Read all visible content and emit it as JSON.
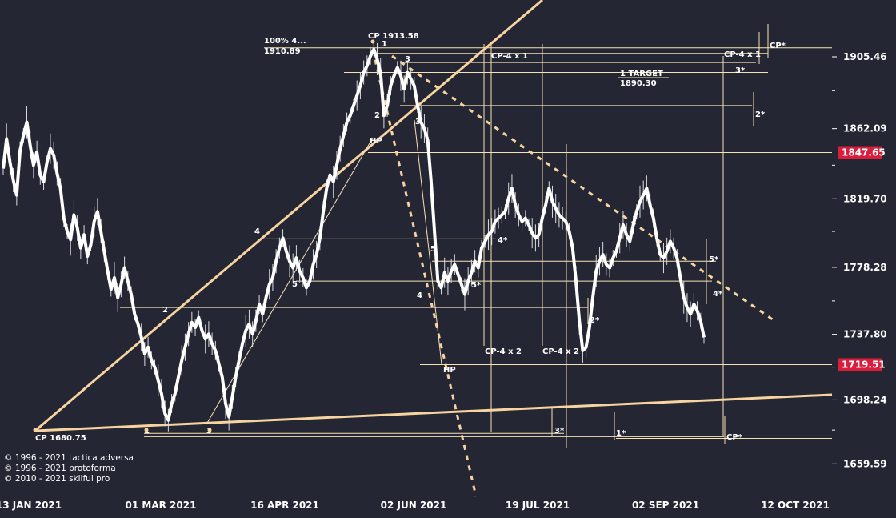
{
  "chart_data": {
    "type": "line",
    "title": "",
    "xlabel": "",
    "ylabel": "",
    "ylim": [
      1642,
      1922
    ],
    "x_ticks": [
      "13 JAN 2021",
      "01 MAR 2021",
      "16 APR 2021",
      "02 JUN 2021",
      "19 JUL 2021",
      "02 SEP 2021",
      "12 OCT 2021"
    ],
    "y_ticks": [
      1905.46,
      1862.09,
      1819.7,
      1778.28,
      1737.8,
      1698.24,
      1659.59
    ],
    "highlighted_prices": [
      {
        "value": 1847.65,
        "label": "1847.65",
        "color": "#d81e3c"
      },
      {
        "value": 1719.51,
        "label": "1719.51",
        "color": "#d81e3c"
      }
    ],
    "series": [
      {
        "price_path": [
          1838,
          1856,
          1842,
          1831,
          1822,
          1849,
          1858,
          1866,
          1852,
          1840,
          1848,
          1834,
          1830,
          1842,
          1850,
          1846,
          1835,
          1826,
          1808,
          1800,
          1795,
          1810,
          1802,
          1790,
          1798,
          1785,
          1792,
          1806,
          1812,
          1800,
          1788,
          1776,
          1765,
          1772,
          1760,
          1768,
          1778,
          1770,
          1762,
          1750,
          1744,
          1736,
          1726,
          1730,
          1722,
          1718,
          1710,
          1702,
          1690,
          1686,
          1696,
          1702,
          1712,
          1722,
          1730,
          1738,
          1745,
          1742,
          1748,
          1740,
          1735,
          1738,
          1732,
          1728,
          1720,
          1712,
          1696,
          1688,
          1700,
          1712,
          1722,
          1732,
          1740,
          1744,
          1738,
          1746,
          1756,
          1750,
          1760,
          1768,
          1772,
          1782,
          1790,
          1796,
          1788,
          1782,
          1778,
          1784,
          1776,
          1772,
          1766,
          1770,
          1780,
          1786,
          1796,
          1812,
          1826,
          1834,
          1830,
          1840,
          1850,
          1858,
          1866,
          1870,
          1876,
          1882,
          1888,
          1896,
          1900,
          1906,
          1910,
          1904,
          1896,
          1870,
          1876,
          1888,
          1894,
          1899,
          1894,
          1886,
          1896,
          1892,
          1888,
          1876,
          1866,
          1862,
          1855,
          1830,
          1800,
          1770,
          1766,
          1775,
          1770,
          1776,
          1780,
          1774,
          1768,
          1762,
          1770,
          1775,
          1782,
          1778,
          1790,
          1794,
          1798,
          1800,
          1806,
          1808,
          1810,
          1812,
          1820,
          1826,
          1816,
          1810,
          1806,
          1808,
          1804,
          1799,
          1796,
          1798,
          1808,
          1816,
          1826,
          1818,
          1814,
          1810,
          1808,
          1806,
          1800,
          1790,
          1770,
          1746,
          1728,
          1730,
          1742,
          1760,
          1776,
          1782,
          1786,
          1780,
          1778,
          1784,
          1788,
          1796,
          1804,
          1798,
          1794,
          1804,
          1812,
          1818,
          1822,
          1826,
          1816,
          1808,
          1796,
          1786,
          1784,
          1788,
          1794,
          1790,
          1784,
          1772,
          1760,
          1754,
          1750,
          1756,
          1752,
          1746,
          1736
        ],
        "ohlc_ticks": "same path, high-low range bars"
      }
    ],
    "annotations": [
      {
        "text": "CP 1913.58"
      },
      {
        "text": "100%  4..."
      },
      {
        "text": "1910.89"
      },
      {
        "text": "1 TARGET"
      },
      {
        "text": "1890.30"
      },
      {
        "text": "CP-4 x 1"
      },
      {
        "text": "CP-4 x 1"
      },
      {
        "text": "CP-4 x 2"
      },
      {
        "text": "CP-4 x 2"
      },
      {
        "text": "CP*"
      },
      {
        "text": "CP*"
      },
      {
        "text": "CP 1680.75"
      },
      {
        "text": "HP"
      },
      {
        "text": "HP"
      },
      {
        "text": "1"
      },
      {
        "text": "2"
      },
      {
        "text": "3"
      },
      {
        "text": "3'"
      },
      {
        "text": "4"
      },
      {
        "text": "5"
      },
      {
        "text": "4"
      },
      {
        "text": "5"
      },
      {
        "text": "2"
      },
      {
        "text": "1"
      },
      {
        "text": "3"
      },
      {
        "text": "2*"
      },
      {
        "text": "3*"
      },
      {
        "text": "4*"
      },
      {
        "text": "5*"
      },
      {
        "text": "2*"
      },
      {
        "text": "3*"
      },
      {
        "text": "1*"
      },
      {
        "text": "5*"
      },
      {
        "text": "4*"
      }
    ]
  },
  "copyright": [
    "© 1996 - 2021 tactica adversa",
    "© 1996 - 2021 protoforma",
    "© 2010 - 2021 skilful pro"
  ],
  "colors": {
    "background": "#242733",
    "price_line": "#ffffff",
    "level_lines": "#f7e2b5",
    "trend_lines": "#f7d3a0",
    "highlight": "#d81e3c"
  }
}
